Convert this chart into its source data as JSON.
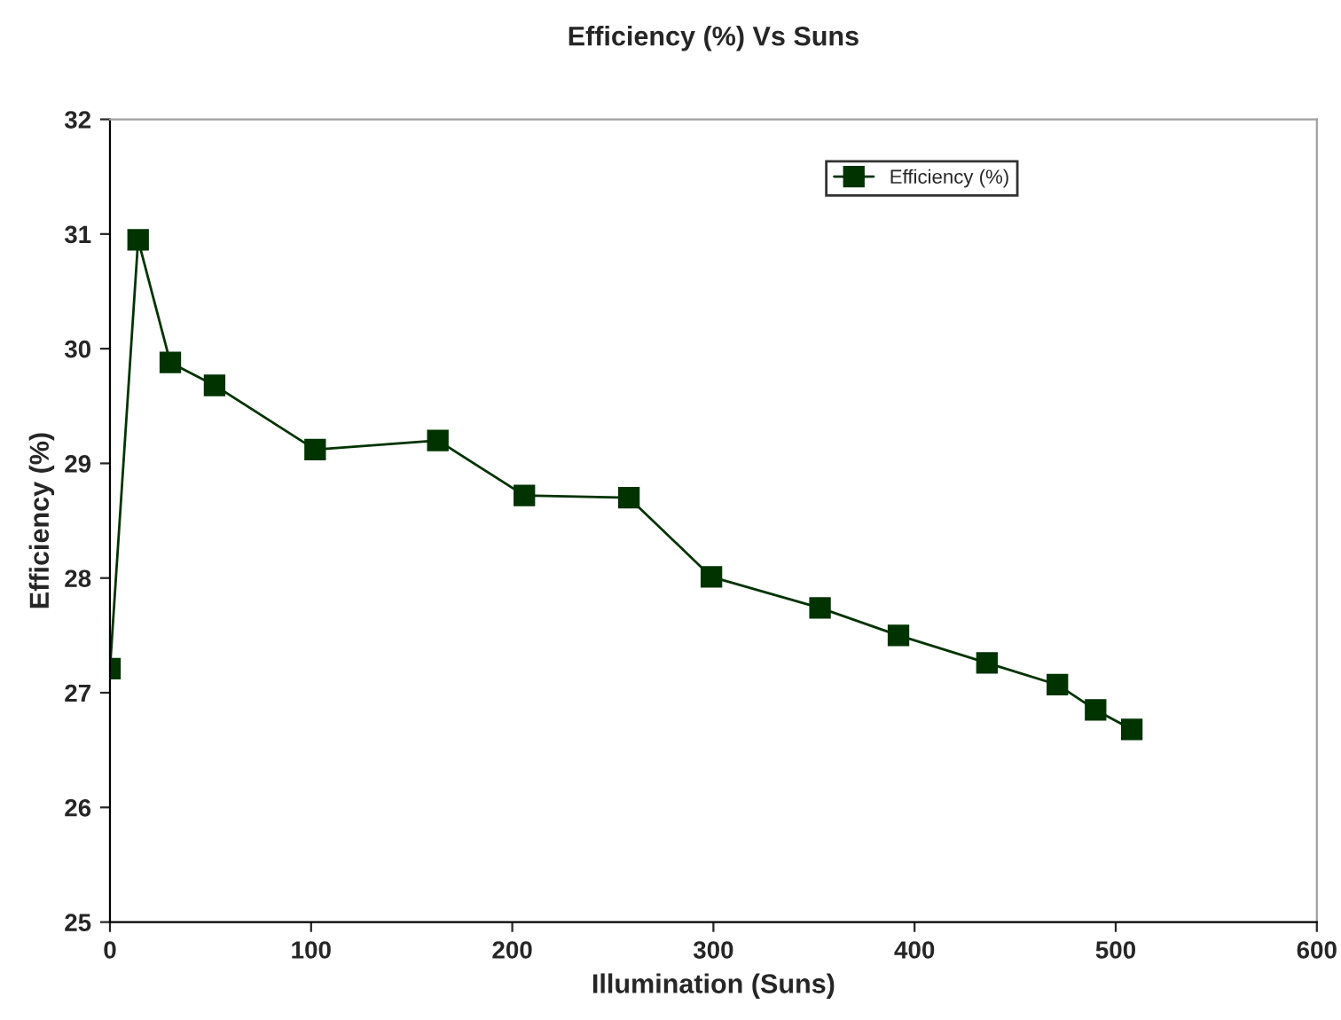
{
  "chart_data": {
    "type": "line",
    "title": "Efficiency (%) Vs Suns",
    "xlabel": "Illumination (Suns)",
    "ylabel": "Efficiency (%)",
    "x": [
      0,
      14,
      30,
      52,
      102,
      163,
      206,
      258,
      299,
      353,
      392,
      436,
      471,
      490,
      508
    ],
    "series": [
      {
        "name": "Efficiency (%)",
        "color": "#003300",
        "values": [
          27.21,
          30.95,
          29.88,
          29.68,
          29.12,
          29.2,
          28.72,
          28.7,
          28.01,
          27.74,
          27.5,
          27.26,
          27.07,
          26.85,
          26.68
        ]
      }
    ],
    "xlim": [
      0,
      600
    ],
    "xticks": [
      0,
      100,
      200,
      300,
      400,
      500,
      600
    ],
    "ylim": [
      25,
      32
    ],
    "yticks": [
      25,
      26,
      27,
      28,
      29,
      30,
      31,
      32
    ],
    "grid": false,
    "legend": "top right",
    "marker": "square",
    "line_style": "solid"
  }
}
